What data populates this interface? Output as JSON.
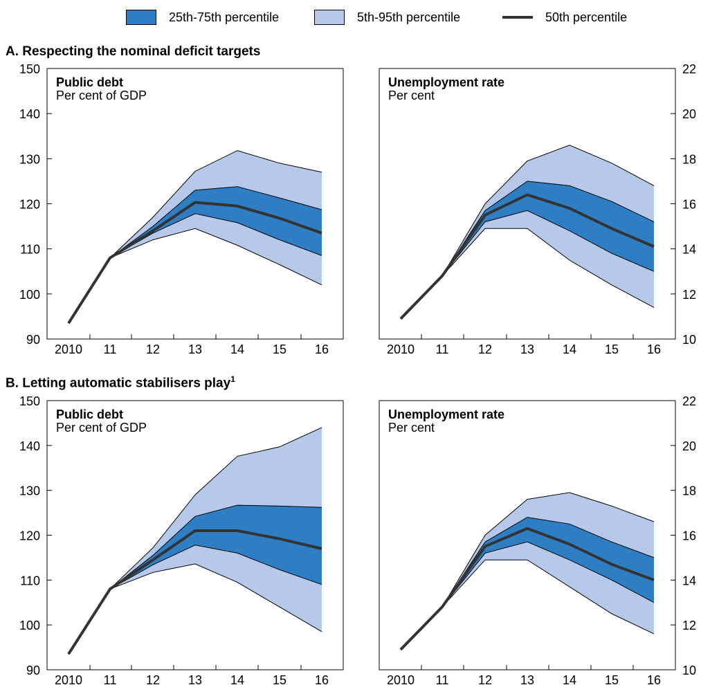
{
  "legend": {
    "iqr": "25th-75th percentile",
    "range": "5th-95th percentile",
    "median": "50th percentile"
  },
  "colors": {
    "iqr": "#2e7ec3",
    "range": "#b7c9ea",
    "median": "#333333",
    "outline": "#000000"
  },
  "panels": [
    {
      "title": "A. Respecting the nominal deficit targets",
      "footnote": ""
    },
    {
      "title": "B. Letting automatic stabilisers play",
      "footnote": "1"
    }
  ],
  "chart_data": [
    {
      "type": "area",
      "panel": "A",
      "title": "Public debt",
      "subtitle": "Per cent of GDP",
      "yaxis_side": "left",
      "ylim": [
        90,
        150
      ],
      "yticks": [
        90,
        100,
        110,
        120,
        130,
        140,
        150
      ],
      "categories": [
        "2010",
        "11",
        "12",
        "13",
        "14",
        "15",
        "16"
      ],
      "series": [
        {
          "name": "5th-95th percentile",
          "lower": [
            93.5,
            108,
            112,
            114.5,
            110.8,
            106.5,
            102
          ],
          "upper": [
            93.5,
            108,
            117,
            127.2,
            131.8,
            129,
            127
          ]
        },
        {
          "name": "25th-75th percentile",
          "lower": [
            93.5,
            108,
            113.5,
            117.8,
            115.8,
            112,
            108.5
          ],
          "upper": [
            93.5,
            108,
            115,
            123,
            123.8,
            121.3,
            118.7
          ]
        },
        {
          "name": "50th percentile",
          "values": [
            93.5,
            108,
            114,
            120.3,
            119.5,
            116.8,
            113.5
          ]
        }
      ]
    },
    {
      "type": "area",
      "panel": "A",
      "title": "Unemployment rate",
      "subtitle": "Per cent",
      "yaxis_side": "right",
      "ylim": [
        10,
        22
      ],
      "yticks": [
        10,
        12,
        14,
        16,
        18,
        20,
        22
      ],
      "categories": [
        "2010",
        "11",
        "12",
        "13",
        "14",
        "15",
        "16"
      ],
      "series": [
        {
          "name": "5th-95th percentile",
          "lower": [
            10.9,
            12.8,
            14.9,
            14.9,
            13.5,
            12.4,
            11.4
          ],
          "upper": [
            10.9,
            12.8,
            16,
            17.9,
            18.6,
            17.8,
            16.8
          ]
        },
        {
          "name": "25th-75th percentile",
          "lower": [
            10.9,
            12.8,
            15.2,
            15.7,
            14.8,
            13.8,
            13
          ],
          "upper": [
            10.9,
            12.8,
            15.7,
            17,
            16.8,
            16.1,
            15.2
          ]
        },
        {
          "name": "50th percentile",
          "values": [
            10.9,
            12.8,
            15.5,
            16.4,
            15.8,
            14.9,
            14.1
          ]
        }
      ]
    },
    {
      "type": "area",
      "panel": "B",
      "title": "Public debt",
      "subtitle": "Per cent of GDP",
      "yaxis_side": "left",
      "ylim": [
        90,
        150
      ],
      "yticks": [
        90,
        100,
        110,
        120,
        130,
        140,
        150
      ],
      "categories": [
        "2010",
        "11",
        "12",
        "13",
        "14",
        "15",
        "16"
      ],
      "series": [
        {
          "name": "5th-95th percentile",
          "lower": [
            93.5,
            108,
            111.7,
            113.6,
            109.5,
            104,
            98.5
          ],
          "upper": [
            93.5,
            108,
            117.2,
            129,
            137.6,
            139.7,
            144
          ]
        },
        {
          "name": "25th-75th percentile",
          "lower": [
            93.5,
            108,
            113.4,
            117.8,
            116,
            112.3,
            109
          ],
          "upper": [
            93.5,
            108,
            115.5,
            124.2,
            126.7,
            126.5,
            126.2
          ]
        },
        {
          "name": "50th percentile",
          "values": [
            93.5,
            108,
            114.5,
            121,
            121,
            119.2,
            117
          ]
        }
      ]
    },
    {
      "type": "area",
      "panel": "B",
      "title": "Unemployment rate",
      "subtitle": "Per cent",
      "yaxis_side": "right",
      "ylim": [
        10,
        22
      ],
      "yticks": [
        10,
        12,
        14,
        16,
        18,
        20,
        22
      ],
      "categories": [
        "2010",
        "11",
        "12",
        "13",
        "14",
        "15",
        "16"
      ],
      "series": [
        {
          "name": "5th-95th percentile",
          "lower": [
            10.9,
            12.8,
            14.9,
            14.9,
            13.7,
            12.5,
            11.6
          ],
          "upper": [
            10.9,
            12.8,
            16,
            17.6,
            17.9,
            17.3,
            16.6
          ]
        },
        {
          "name": "25th-75th percentile",
          "lower": [
            10.9,
            12.8,
            15.2,
            15.7,
            14.9,
            14,
            13
          ],
          "upper": [
            10.9,
            12.8,
            15.7,
            16.8,
            16.5,
            15.7,
            15
          ]
        },
        {
          "name": "50th percentile",
          "values": [
            10.9,
            12.8,
            15.5,
            16.3,
            15.6,
            14.7,
            14
          ]
        }
      ]
    }
  ]
}
